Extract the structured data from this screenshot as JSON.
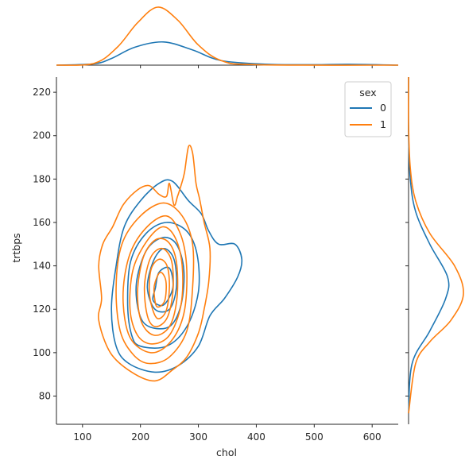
{
  "chart_data": {
    "type": "jointplot-kde",
    "title": "",
    "xlabel": "chol",
    "ylabel": "trtbps",
    "xlim": [
      55,
      645
    ],
    "ylim": [
      67,
      227
    ],
    "xticks": [
      100,
      200,
      300,
      400,
      500,
      600
    ],
    "yticks": [
      80,
      100,
      120,
      140,
      160,
      180,
      200,
      220
    ],
    "grid": false,
    "legend": {
      "title": "sex",
      "placement": "top-right"
    },
    "series": [
      {
        "name": "0",
        "color": "#1f77b4",
        "contours": [
          [
            [
              225,
              91
            ],
            [
              265,
              94
            ],
            [
              300,
              103
            ],
            [
              320,
              117
            ],
            [
              345,
              125
            ],
            [
              368,
              135
            ],
            [
              375,
              143
            ],
            [
              363,
              150
            ],
            [
              335,
              150
            ],
            [
              318,
              156
            ],
            [
              305,
              164
            ],
            [
              283,
              170
            ],
            [
              255,
              179
            ],
            [
              232,
              178
            ],
            [
              200,
              170
            ],
            [
              172,
              158
            ],
            [
              158,
              140
            ],
            [
              150,
              120
            ],
            [
              158,
              103
            ],
            [
              180,
              95
            ]
          ],
          [
            [
              200,
              103
            ],
            [
              245,
              103
            ],
            [
              280,
              112
            ],
            [
              300,
              128
            ],
            [
              298,
              145
            ],
            [
              280,
              156
            ],
            [
              245,
              160
            ],
            [
              210,
              155
            ],
            [
              183,
              142
            ],
            [
              178,
              122
            ],
            [
              185,
              108
            ]
          ],
          [
            [
              215,
              112
            ],
            [
              250,
              112
            ],
            [
              270,
              122
            ],
            [
              275,
              138
            ],
            [
              262,
              150
            ],
            [
              238,
              153
            ],
            [
              210,
              147
            ],
            [
              193,
              132
            ],
            [
              198,
              118
            ]
          ],
          [
            [
              225,
              120
            ],
            [
              250,
              120
            ],
            [
              262,
              130
            ],
            [
              258,
              143
            ],
            [
              240,
              148
            ],
            [
              222,
              142
            ],
            [
              212,
              130
            ]
          ],
          [
            [
              222,
              124
            ],
            [
              240,
              122
            ],
            [
              256,
              130
            ],
            [
              250,
              139
            ],
            [
              232,
              137
            ],
            [
              226,
              130
            ]
          ]
        ],
        "x_density": [
          [
            55,
            0.0
          ],
          [
            120,
            0.0003
          ],
          [
            150,
            0.0015
          ],
          [
            190,
            0.004
          ],
          [
            240,
            0.0052
          ],
          [
            290,
            0.0034
          ],
          [
            340,
            0.001
          ],
          [
            420,
            0.0002
          ],
          [
            500,
            0.0001
          ],
          [
            560,
            0.0002
          ],
          [
            645,
            0.0
          ]
        ],
        "y_density": [
          [
            72,
            0.0
          ],
          [
            95,
            0.002
          ],
          [
            110,
            0.012
          ],
          [
            125,
            0.021
          ],
          [
            135,
            0.022
          ],
          [
            150,
            0.012
          ],
          [
            165,
            0.004
          ],
          [
            180,
            0.001
          ],
          [
            200,
            0.0
          ],
          [
            227,
            0.0
          ]
        ]
      },
      {
        "name": "1",
        "color": "#ff7f0e",
        "contours": [
          [
            [
              225,
              87
            ],
            [
              255,
              92
            ],
            [
              280,
              98
            ],
            [
              300,
              109
            ],
            [
              310,
              120
            ],
            [
              318,
              133
            ],
            [
              320,
              148
            ],
            [
              310,
              160
            ],
            [
              302,
              171
            ],
            [
              296,
              178
            ],
            [
              290,
              192
            ],
            [
              283,
              195
            ],
            [
              276,
              183
            ],
            [
              270,
              177
            ],
            [
              264,
              172
            ],
            [
              258,
              168
            ],
            [
              250,
              178
            ],
            [
              245,
              172
            ],
            [
              232,
              173
            ],
            [
              215,
              177
            ],
            [
              195,
              175
            ],
            [
              170,
              168
            ],
            [
              152,
              158
            ],
            [
              135,
              150
            ],
            [
              128,
              140
            ],
            [
              133,
              125
            ],
            [
              128,
              115
            ],
            [
              148,
              100
            ],
            [
              185,
              91
            ]
          ],
          [
            [
              215,
              95
            ],
            [
              250,
              98
            ],
            [
              280,
              110
            ],
            [
              290,
              130
            ],
            [
              290,
              150
            ],
            [
              272,
              163
            ],
            [
              240,
              169
            ],
            [
              200,
              163
            ],
            [
              168,
              150
            ],
            [
              158,
              130
            ],
            [
              165,
              110
            ],
            [
              188,
              99
            ]
          ],
          [
            [
              218,
              100
            ],
            [
              252,
              105
            ],
            [
              275,
              118
            ],
            [
              280,
              138
            ],
            [
              270,
              154
            ],
            [
              245,
              163
            ],
            [
              208,
              157
            ],
            [
              180,
              144
            ],
            [
              170,
              125
            ],
            [
              182,
              107
            ]
          ],
          [
            [
              220,
              104
            ],
            [
              250,
              108
            ],
            [
              270,
              122
            ],
            [
              272,
              140
            ],
            [
              260,
              153
            ],
            [
              238,
              158
            ],
            [
              210,
              151
            ],
            [
              187,
              138
            ],
            [
              182,
              120
            ],
            [
              195,
              108
            ]
          ],
          [
            [
              224,
              108
            ],
            [
              250,
              112
            ],
            [
              263,
              125
            ],
            [
              262,
              142
            ],
            [
              248,
              151
            ],
            [
              226,
              152
            ],
            [
              205,
              144
            ],
            [
              195,
              128
            ],
            [
              202,
              114
            ]
          ],
          [
            [
              226,
              112
            ],
            [
              246,
              116
            ],
            [
              256,
              128
            ],
            [
              254,
              142
            ],
            [
              238,
              148
            ],
            [
              218,
              144
            ],
            [
              207,
              131
            ],
            [
              212,
              117
            ]
          ],
          [
            [
              228,
              116
            ],
            [
              244,
              119
            ],
            [
              250,
              130
            ],
            [
              246,
              140
            ],
            [
              232,
              143
            ],
            [
              218,
              138
            ],
            [
              216,
              126
            ]
          ],
          [
            [
              230,
              121
            ],
            [
              242,
              124
            ],
            [
              244,
              133
            ],
            [
              234,
              137
            ],
            [
              224,
              131
            ],
            [
              225,
              124
            ]
          ]
        ],
        "x_density": [
          [
            55,
            0.0
          ],
          [
            120,
            0.0004
          ],
          [
            160,
            0.004
          ],
          [
            195,
            0.0095
          ],
          [
            230,
            0.013
          ],
          [
            265,
            0.01
          ],
          [
            300,
            0.0045
          ],
          [
            340,
            0.001
          ],
          [
            400,
            0.0001
          ],
          [
            645,
            0.0
          ]
        ],
        "y_density": [
          [
            72,
            0.0
          ],
          [
            95,
            0.004
          ],
          [
            105,
            0.012
          ],
          [
            115,
            0.024
          ],
          [
            127,
            0.031
          ],
          [
            140,
            0.026
          ],
          [
            155,
            0.012
          ],
          [
            170,
            0.004
          ],
          [
            185,
            0.001
          ],
          [
            205,
            0.0
          ],
          [
            227,
            0.0
          ]
        ]
      }
    ]
  }
}
